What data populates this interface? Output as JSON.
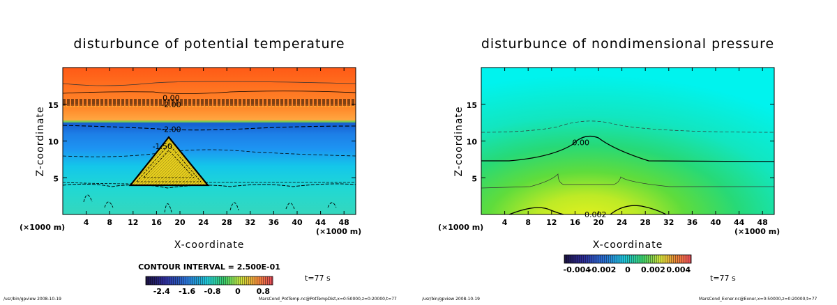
{
  "chart_data": [
    {
      "type": "heatmap",
      "title": "disturbunce of potential temperature",
      "xlabel": "X-coordinate",
      "ylabel": "Z-coordinate",
      "x_unit": "(×1000 m)",
      "xlim": [
        0,
        50
      ],
      "ylim": [
        0,
        20
      ],
      "xticks": [
        4,
        8,
        12,
        16,
        20,
        24,
        28,
        32,
        36,
        40,
        44,
        48
      ],
      "yticks": [
        5,
        10,
        15
      ],
      "contour_labels": [
        {
          "text": "0.00",
          "x": 18.5,
          "z": 15.9
        },
        {
          "text": "-2.00",
          "x": 18.5,
          "z": 15.0
        },
        {
          "text": "-2.00",
          "x": 18.5,
          "z": 11.6
        },
        {
          "text": "-1.50",
          "x": 17.0,
          "z": 9.3
        }
      ],
      "contour_interval": "CONTOUR INTERVAL = 2.500E-01",
      "colorbar": {
        "ticks": [
          "-2.4",
          "-1.6",
          "-0.8",
          "0",
          "0.8"
        ],
        "range": [
          -2.9,
          1.1
        ]
      },
      "time": "t=77 s",
      "footer_left": "/usr/bin/gpview 2008-10-19",
      "footer_right": "MarsCond_PotTemp.nc@PotTempDist,x=0:50000,z=0:20000,t=77"
    },
    {
      "type": "heatmap",
      "title": "disturbunce of nondimensional pressure",
      "xlabel": "X-coordinate",
      "ylabel": "Z-coordinate",
      "x_unit": "(×1000 m)",
      "xlim": [
        0,
        50
      ],
      "ylim": [
        0,
        20
      ],
      "xticks": [
        4,
        8,
        12,
        16,
        20,
        24,
        28,
        32,
        36,
        40,
        44,
        48
      ],
      "yticks": [
        5,
        10,
        15
      ],
      "contour_labels": [
        {
          "text": "0.00",
          "x": 17.0,
          "z": 9.8
        },
        {
          "text": "0.002",
          "x": 19.5,
          "z": 0.0
        }
      ],
      "colorbar": {
        "ticks": [
          "-0.004",
          "-0.002",
          "0",
          "0.002",
          "0.004"
        ],
        "range": [
          -0.005,
          0.005
        ]
      },
      "time": "t=77 s",
      "footer_left": "/usr/bin/gpview 2008-10-19",
      "footer_right": "MarsCond_Exner.nc@Exner,x=0:50000,z=0:20000,t=77"
    }
  ]
}
